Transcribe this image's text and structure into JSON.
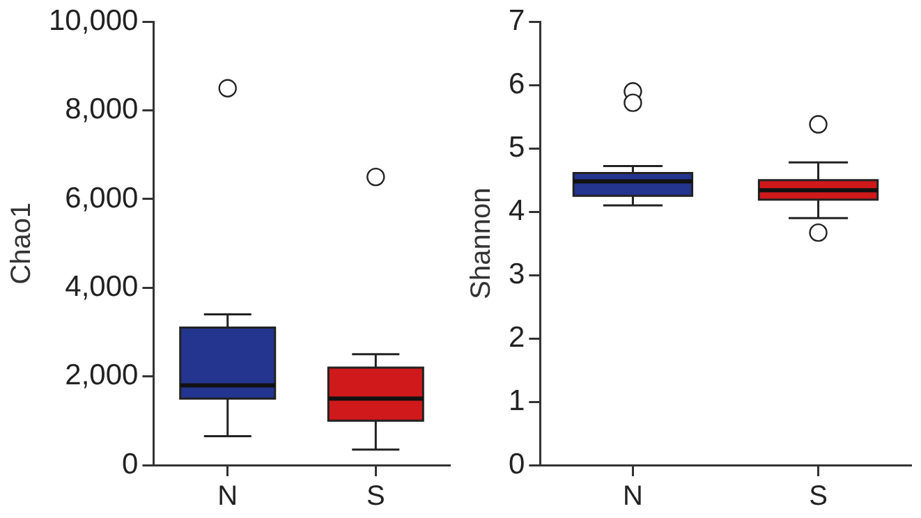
{
  "chart_data": [
    {
      "type": "box",
      "ylabel": "Chao1",
      "categories": [
        "N",
        "S"
      ],
      "colors": [
        "#24358f",
        "#d0191b"
      ],
      "ylim": [
        0,
        10000
      ],
      "yticks": [
        0,
        {
          "value": 2000,
          "label": "2,000"
        },
        {
          "value": 4000,
          "label": "4,000"
        },
        {
          "value": 6000,
          "label": "6,000"
        },
        {
          "value": 8000,
          "label": "8,000"
        },
        {
          "value": 10000,
          "label": "10,000"
        }
      ],
      "legend": false,
      "grid": false,
      "boxes": [
        {
          "low": 650,
          "q1": 1500,
          "median": 1800,
          "q3": 3100,
          "high": 3400,
          "outliers": [
            8500
          ]
        },
        {
          "low": 350,
          "q1": 1000,
          "median": 1500,
          "q3": 2200,
          "high": 2500,
          "outliers": [
            6500
          ]
        }
      ]
    },
    {
      "type": "box",
      "ylabel": "Shannon",
      "categories": [
        "N",
        "S"
      ],
      "colors": [
        "#24358f",
        "#d0191b"
      ],
      "ylim": [
        0,
        7
      ],
      "yticks": [
        0,
        1,
        2,
        3,
        4,
        5,
        6,
        7
      ],
      "legend": false,
      "grid": false,
      "boxes": [
        {
          "low": 4.1,
          "q1": 4.25,
          "median": 4.48,
          "q3": 4.61,
          "high": 4.72,
          "outliers": [
            5.9,
            5.72
          ]
        },
        {
          "low": 3.9,
          "q1": 4.19,
          "median": 4.34,
          "q3": 4.5,
          "high": 4.78,
          "outliers": [
            5.38,
            3.67
          ]
        }
      ]
    }
  ]
}
